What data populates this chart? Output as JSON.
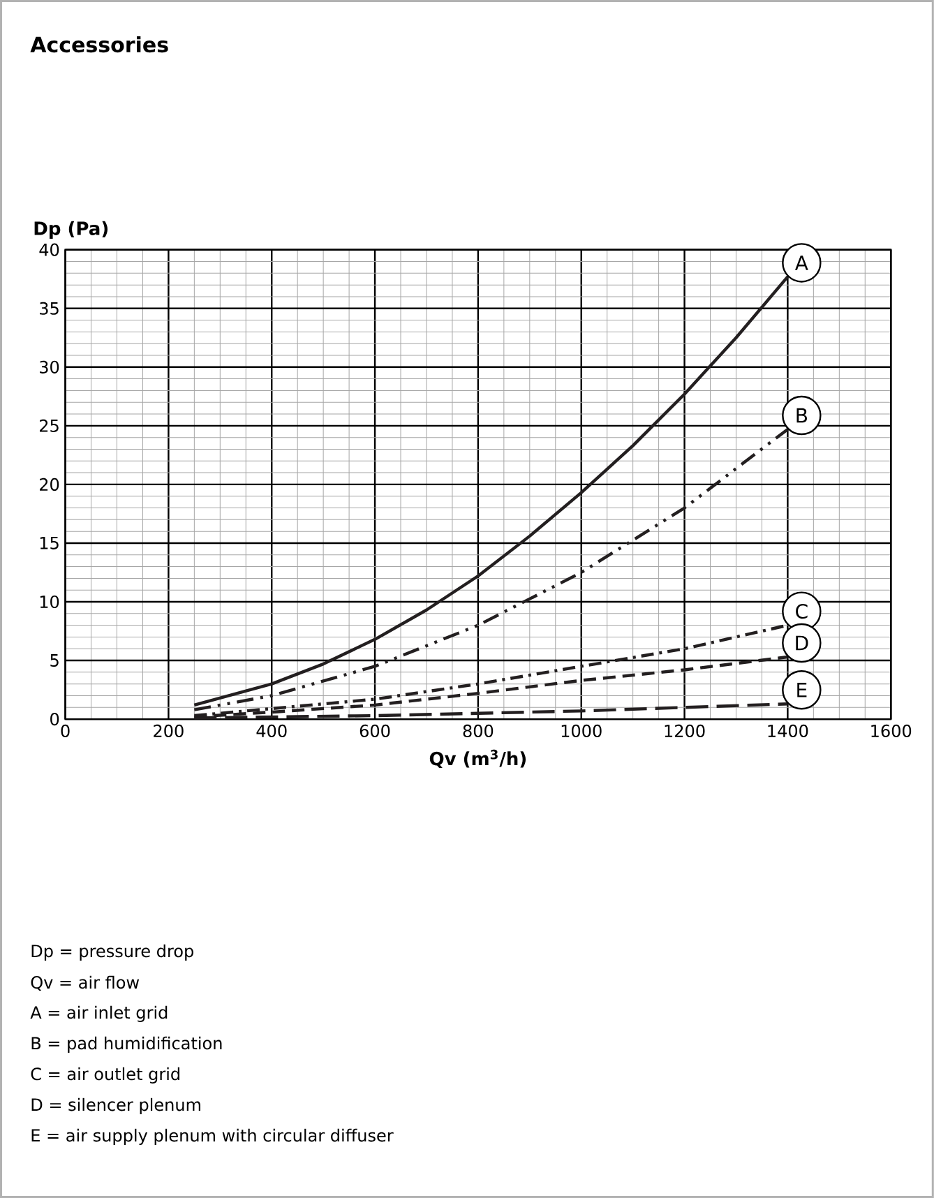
{
  "chart_data": {
    "type": "line",
    "title": "Accessories",
    "xlabel": "Qv (m$^{3}$/h)",
    "ylabel": "Dp (Pa)",
    "xlim": [
      0,
      1600
    ],
    "ylim": [
      0,
      40
    ],
    "xticks": [
      0,
      200,
      400,
      600,
      800,
      1000,
      1200,
      1400,
      1600
    ],
    "yticks": [
      0,
      5,
      10,
      15,
      20,
      25,
      30,
      35,
      40
    ],
    "grid": true,
    "legend": false,
    "series": [
      {
        "name": "A",
        "color": "#231f20",
        "line_style": "solid",
        "x": [
          250,
          400,
          500,
          600,
          700,
          800,
          900,
          1000,
          1100,
          1200,
          1300,
          1400
        ],
        "values": [
          1.2,
          3,
          4.7,
          6.8,
          9.3,
          12.2,
          15.6,
          19.3,
          23.3,
          27.7,
          32.5,
          37.7
        ]
      },
      {
        "name": "B",
        "color": "#231f20",
        "line_style": "dashdotdot",
        "x": [
          250,
          400,
          600,
          800,
          1000,
          1200,
          1400
        ],
        "values": [
          0.8,
          2,
          4.5,
          8,
          12.5,
          18,
          24.7
        ]
      },
      {
        "name": "C",
        "color": "#231f20",
        "line_style": "dashdot",
        "x": [
          250,
          400,
          600,
          800,
          1000,
          1200,
          1400
        ],
        "values": [
          0.3,
          0.9,
          1.7,
          3,
          4.5,
          6,
          8
        ]
      },
      {
        "name": "D",
        "color": "#231f20",
        "line_style": "dashed",
        "x": [
          250,
          400,
          600,
          800,
          1000,
          1200,
          1400
        ],
        "values": [
          0.2,
          0.6,
          1.2,
          2.2,
          3.3,
          4.2,
          5.3
        ]
      },
      {
        "name": "E",
        "color": "#231f20",
        "line_style": "longdashed",
        "x": [
          250,
          600,
          1000,
          1400
        ],
        "values": [
          0.1,
          0.3,
          0.7,
          1.3
        ]
      }
    ],
    "annotations": [
      "Dp = pressure drop",
      "Qv = air flow",
      "A = air inlet grid",
      "B = pad humidification",
      "C = air outlet grid",
      "D = silencer plenum",
      "E = air supply plenum with circular diffuser"
    ]
  }
}
